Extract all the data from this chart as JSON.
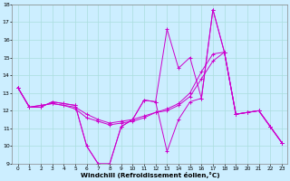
{
  "xlabel": "Windchill (Refroidissement éolien,°C)",
  "bg_color": "#cceeff",
  "line_color": "#cc00cc",
  "grid_color": "#aadddd",
  "xlim": [
    -0.5,
    23.5
  ],
  "ylim": [
    9,
    18
  ],
  "xticks": [
    0,
    1,
    2,
    3,
    4,
    5,
    6,
    7,
    8,
    9,
    10,
    11,
    12,
    13,
    14,
    15,
    16,
    17,
    18,
    19,
    20,
    21,
    22,
    23
  ],
  "yticks": [
    9,
    10,
    11,
    12,
    13,
    14,
    15,
    16,
    17,
    18
  ],
  "series": [
    [
      13.3,
      12.2,
      12.2,
      12.5,
      12.4,
      12.3,
      10.0,
      9.0,
      9.0,
      11.1,
      11.5,
      12.6,
      12.5,
      9.7,
      11.5,
      12.5,
      12.7,
      17.7,
      15.3,
      11.8,
      11.9,
      12.0,
      11.1,
      10.2
    ],
    [
      13.3,
      12.2,
      12.2,
      12.5,
      12.4,
      12.3,
      10.0,
      9.0,
      9.0,
      11.1,
      11.5,
      12.6,
      12.5,
      16.6,
      14.4,
      15.0,
      12.7,
      17.7,
      15.3,
      11.8,
      11.9,
      12.0,
      11.1,
      10.2
    ],
    [
      13.3,
      12.2,
      12.3,
      12.4,
      12.3,
      12.2,
      11.8,
      11.5,
      11.3,
      11.4,
      11.5,
      11.7,
      11.9,
      12.1,
      12.4,
      13.0,
      14.2,
      15.2,
      15.3,
      11.8,
      11.9,
      12.0,
      11.1,
      10.2
    ],
    [
      13.3,
      12.2,
      12.3,
      12.4,
      12.3,
      12.1,
      11.6,
      11.4,
      11.2,
      11.3,
      11.4,
      11.6,
      11.9,
      12.0,
      12.3,
      12.8,
      13.8,
      14.8,
      15.3,
      11.8,
      11.9,
      12.0,
      11.1,
      10.2
    ]
  ]
}
